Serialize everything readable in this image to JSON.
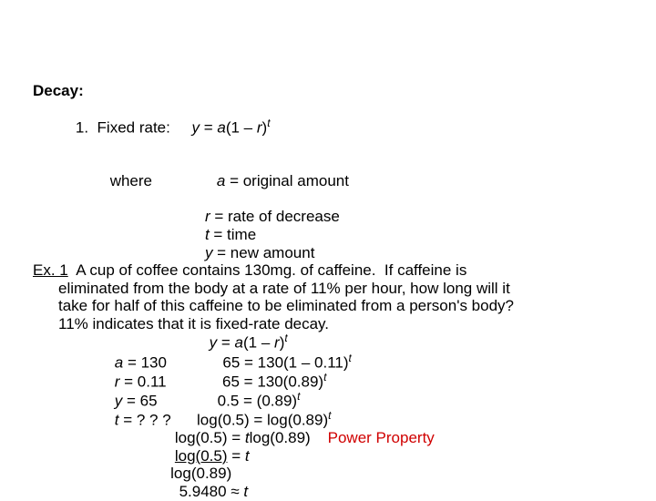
{
  "heading": {
    "decay_label": "Decay:",
    "item1_number": "1.",
    "item1_text": "Fixed rate:",
    "formula_prefix": "y",
    "formula_eq": " = ",
    "formula_a": "a",
    "formula_paren": "(1 – ",
    "formula_r": "r",
    "formula_close": ")",
    "formula_exp": "t",
    "where_label": "where",
    "def_a_var": "a",
    "def_a_text": " = original amount",
    "def_r_var": "r",
    "def_r_text": " = rate of decrease",
    "def_t_var": "t",
    "def_t_text": " = time",
    "def_y_var": "y",
    "def_y_text": " = new amount"
  },
  "example": {
    "label": "Ex. 1",
    "text_line1": "  A cup of coffee contains 130mg. of caffeine.  If caffeine is",
    "text_line2": "eliminated from the body at a rate of 11% per hour, how long will it",
    "text_line3": "take for half of this caffeine to be eliminated from a person's body?",
    "hint": "11% indicates that it is fixed-rate decay.",
    "work": {
      "formula_center_y": "y",
      "formula_center_eq": " = ",
      "formula_center_a": "a",
      "formula_center_p1": "(1 – ",
      "formula_center_r": "r",
      "formula_center_p2": ")",
      "formula_center_t": "t",
      "a_var": "a",
      "a_val": " = 130",
      "step1_lhs": "65 = 130(1 – 0.11)",
      "step1_exp": "t",
      "r_var": "r",
      "r_val": " = 0.11",
      "step2_lhs": "65 = 130(0.89)",
      "step2_exp": "t",
      "y_var": "y",
      "y_val": " = 65",
      "step3_lhs": "0.5 = (0.89)",
      "step3_exp": "t",
      "t_var": "t",
      "t_val": " = ? ? ?",
      "step4_lhs": "log(0.5) = log(0.89)",
      "step4_exp": "t",
      "step5_lhs": "log(0.5) = ",
      "step5_t": "t",
      "step5_rhs": "log(0.89)",
      "power_prop": "Power Property",
      "step6_num": "log(0.5)",
      "step6_eq": " = ",
      "step6_t": "t",
      "step6_den": "log(0.89)",
      "answer": "5.9480 ≈ ",
      "answer_t": "t"
    }
  },
  "colors": {
    "text": "#000000",
    "accent": "#d00000",
    "background": "#ffffff"
  }
}
